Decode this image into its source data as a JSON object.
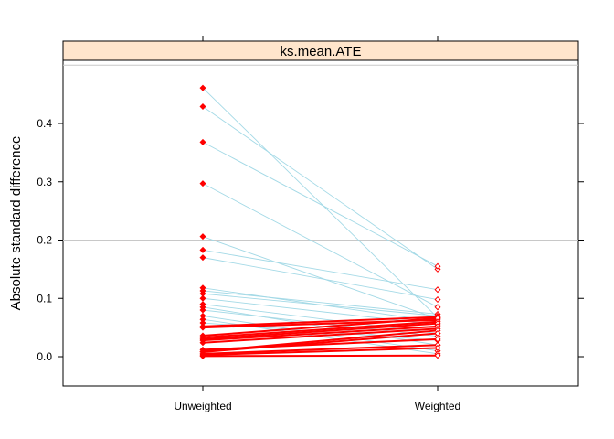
{
  "chart_data": {
    "type": "scatter",
    "panel_title": "ks.mean.ATE",
    "ylabel": "Absolute standard difference",
    "xlabel": "",
    "categories": [
      "Unweighted",
      "Weighted"
    ],
    "ylim": [
      -0.05,
      0.5
    ],
    "yticks": [
      0.0,
      0.1,
      0.2,
      0.3,
      0.4
    ],
    "ytick_labels": [
      "0.0",
      "0.1",
      "0.2",
      "0.3",
      "0.4"
    ],
    "reference_lines": [
      0.2,
      0.5
    ],
    "colors": {
      "strip": "#ffe5cc",
      "decrease_line": "#a3d9e6",
      "increase_line": "#ff0000",
      "point": "#ff0000",
      "reference": "#c8c8c8",
      "frame": "#000000"
    },
    "legend": "none",
    "pairs": [
      {
        "unweighted": 0.461,
        "weighted": 0.067
      },
      {
        "unweighted": 0.429,
        "weighted": 0.15
      },
      {
        "unweighted": 0.368,
        "weighted": 0.155
      },
      {
        "unweighted": 0.297,
        "weighted": 0.085
      },
      {
        "unweighted": 0.206,
        "weighted": 0.065
      },
      {
        "unweighted": 0.183,
        "weighted": 0.115
      },
      {
        "unweighted": 0.17,
        "weighted": 0.098
      },
      {
        "unweighted": 0.118,
        "weighted": 0.06
      },
      {
        "unweighted": 0.113,
        "weighted": 0.073
      },
      {
        "unweighted": 0.108,
        "weighted": 0.07
      },
      {
        "unweighted": 0.1,
        "weighted": 0.055
      },
      {
        "unweighted": 0.09,
        "weighted": 0.04
      },
      {
        "unweighted": 0.085,
        "weighted": 0.02
      },
      {
        "unweighted": 0.08,
        "weighted": 0.035
      },
      {
        "unweighted": 0.07,
        "weighted": 0.01
      },
      {
        "unweighted": 0.064,
        "weighted": 0.005
      },
      {
        "unweighted": 0.058,
        "weighted": 0.028
      },
      {
        "unweighted": 0.052,
        "weighted": 0.068
      },
      {
        "unweighted": 0.05,
        "weighted": 0.063
      },
      {
        "unweighted": 0.036,
        "weighted": 0.066
      },
      {
        "unweighted": 0.033,
        "weighted": 0.06
      },
      {
        "unweighted": 0.03,
        "weighted": 0.057
      },
      {
        "unweighted": 0.028,
        "weighted": 0.052
      },
      {
        "unweighted": 0.024,
        "weighted": 0.048
      },
      {
        "unweighted": 0.012,
        "weighted": 0.03
      },
      {
        "unweighted": 0.009,
        "weighted": 0.045
      },
      {
        "unweighted": 0.008,
        "weighted": 0.04
      },
      {
        "unweighted": 0.005,
        "weighted": 0.02
      },
      {
        "unweighted": 0.003,
        "weighted": 0.015
      },
      {
        "unweighted": 0.001,
        "weighted": 0.002
      }
    ]
  }
}
